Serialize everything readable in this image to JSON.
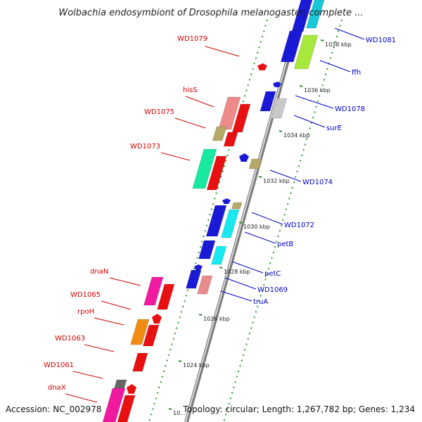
{
  "title": "Wolbachia endosymbiont of Drosophila melanogaster, complete ...",
  "footer": {
    "accession": "Accession: NC_002978",
    "topology": "Topology: circular; Length: 1,267,782 bp; Genes: 1,234"
  },
  "colors": {
    "label_forward": "#d40000",
    "label_reverse": "#0000c8",
    "backbone": "#8a8a8a",
    "tick": "#2a9a2a"
  },
  "scale_labels": [
    "1038 kbp",
    "1036 kbp",
    "1034 kbp",
    "1032 kbp",
    "1030 kbp",
    "1028 kbp",
    "1026 kbp",
    "1024 kbp",
    "10..."
  ],
  "forward_gene_labels": [
    "WD1079",
    "hisS",
    "WD1075",
    "WD1073",
    "dnaN",
    "WD1065",
    "rpoH",
    "WD1063",
    "WD1061",
    "dnaX"
  ],
  "reverse_gene_labels": [
    "WD1081",
    "ffh",
    "WD1078",
    "surE",
    "WD1074",
    "WD1072",
    "petB",
    "petC",
    "WD1069",
    "truA"
  ]
}
